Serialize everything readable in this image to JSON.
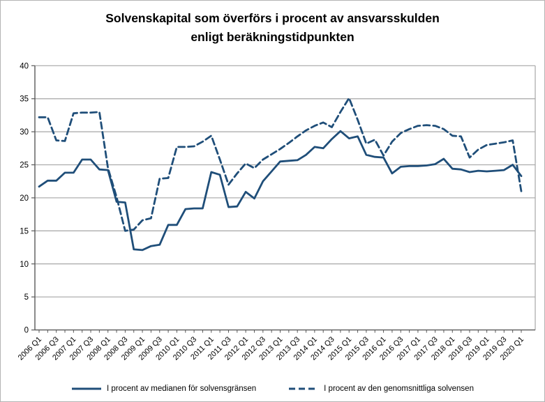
{
  "figure": {
    "title_line1": "Solvenskapital som överförs i procent av ansvarsskulden",
    "title_line2": "enligt beräkningstidpunkten",
    "line_color": "#1f4e79",
    "gridline_color": "#a6a6a6",
    "axis_color": "#595959",
    "text_color": "#000000"
  },
  "chart_data": {
    "type": "line",
    "title": "Solvenskapital som överförs i procent av ansvarsskulden enligt beräkningstidpunkten",
    "xlabel": "",
    "ylabel": "",
    "ylim": [
      0,
      40
    ],
    "y_step": 5,
    "grid": true,
    "legend_position": "bottom",
    "x_tick_label_every": 2,
    "categories": [
      "2006 Q1",
      "2006 Q2",
      "2006 Q3",
      "2006 Q4",
      "2007 Q1",
      "2007 Q2",
      "2007 Q3",
      "2007 Q4",
      "2008 Q1",
      "2008 Q2",
      "2008 Q3",
      "2008 Q4",
      "2009 Q1",
      "2009 Q2",
      "2009 Q3",
      "2009 Q4",
      "2010 Q1",
      "2010 Q2",
      "2010 Q3",
      "2010 Q4",
      "2011 Q1",
      "2011 Q2",
      "2011 Q3",
      "2011 Q4",
      "2012 Q1",
      "2012 Q2",
      "2012 Q3",
      "2012 Q4",
      "2013 Q1",
      "2013 Q2",
      "2013 Q3",
      "2013 Q4",
      "2014 Q1",
      "2014 Q2",
      "2014 Q3",
      "2014 Q4",
      "2015 Q1",
      "2015 Q2",
      "2015 Q3",
      "2015 Q4",
      "2016 Q1",
      "2016 Q2",
      "2016 Q3",
      "2016 Q4",
      "2017 Q1",
      "2017 Q2",
      "2017 Q3",
      "2017 Q4",
      "2018 Q1",
      "2018 Q2",
      "2018 Q3",
      "2018 Q4",
      "2019 Q1",
      "2019 Q2",
      "2019 Q3",
      "2019 Q4",
      "2020 Q1"
    ],
    "series": [
      {
        "name": "I procent av medianen för solvensgränsen",
        "style": "solid",
        "color": "#1f4e79",
        "values": [
          21.7,
          22.6,
          22.6,
          23.8,
          23.8,
          25.8,
          25.8,
          24.3,
          24.2,
          19.4,
          19.3,
          12.2,
          12.1,
          12.7,
          12.9,
          15.9,
          15.9,
          18.3,
          18.4,
          18.4,
          23.9,
          23.5,
          18.6,
          18.7,
          20.9,
          19.9,
          22.5,
          24.0,
          25.5,
          25.6,
          25.7,
          26.5,
          27.7,
          27.5,
          28.9,
          30.1,
          29.0,
          29.3,
          26.5,
          26.2,
          26.1,
          23.7,
          24.7,
          24.8,
          24.8,
          24.9,
          25.1,
          25.9,
          24.4,
          24.3,
          23.9,
          24.1,
          24.0,
          24.1,
          24.2,
          25.0,
          23.3
        ]
      },
      {
        "name": "I procent av den genomsnittliga solvensen",
        "style": "dashed",
        "color": "#1f4e79",
        "values": [
          32.2,
          32.2,
          28.7,
          28.6,
          32.8,
          32.9,
          32.9,
          33.0,
          24.5,
          20.1,
          15.0,
          15.2,
          16.6,
          16.9,
          22.9,
          23.0,
          27.7,
          27.7,
          27.8,
          28.5,
          29.4,
          25.8,
          22.0,
          23.7,
          25.2,
          24.5,
          25.8,
          26.6,
          27.4,
          28.3,
          29.3,
          30.2,
          30.9,
          31.4,
          30.7,
          33.0,
          35.1,
          31.8,
          28.2,
          28.8,
          26.4,
          28.5,
          29.8,
          30.4,
          30.9,
          31.0,
          30.9,
          30.4,
          29.4,
          29.3,
          26.1,
          27.3,
          28.0,
          28.2,
          28.4,
          28.7,
          21.0
        ]
      }
    ]
  }
}
